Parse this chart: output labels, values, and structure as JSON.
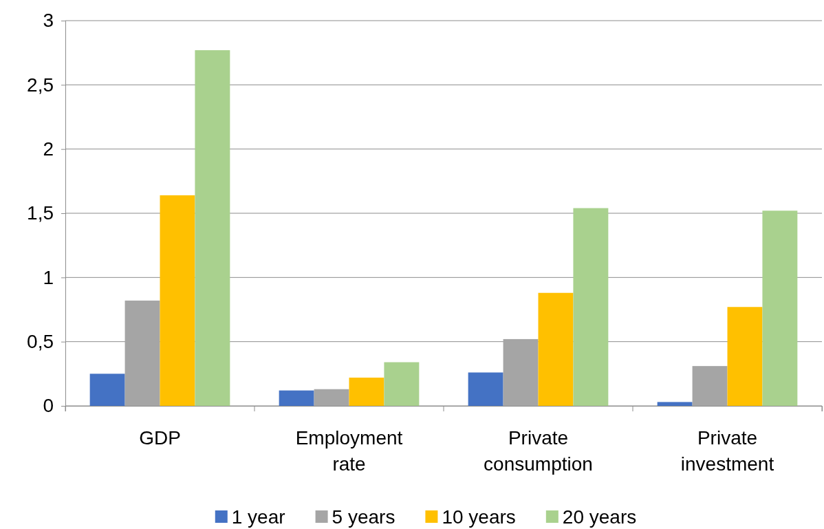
{
  "chart_data": {
    "type": "bar",
    "categories": [
      "GDP",
      "Employment rate",
      "Private consumption",
      "Private investment"
    ],
    "series": [
      {
        "name": "1 year",
        "color": "#4472c4",
        "values": [
          0.25,
          0.12,
          0.26,
          0.03
        ]
      },
      {
        "name": "5 years",
        "color": "#a5a5a5",
        "values": [
          0.82,
          0.13,
          0.52,
          0.31
        ]
      },
      {
        "name": "10 years",
        "color": "#ffc000",
        "values": [
          1.64,
          0.22,
          0.88,
          0.77
        ]
      },
      {
        "name": "20 years",
        "color": "#a9d18e",
        "values": [
          2.77,
          0.34,
          1.54,
          1.52
        ]
      }
    ],
    "ylim": [
      0,
      3
    ],
    "yticks": [
      0,
      {
        "value": 0.5,
        "label": "0,5"
      },
      1,
      {
        "value": 1.5,
        "label": "1,5"
      },
      2,
      {
        "value": 2.5,
        "label": "2,5"
      },
      3
    ],
    "grid": "y",
    "legend": "bottom"
  }
}
